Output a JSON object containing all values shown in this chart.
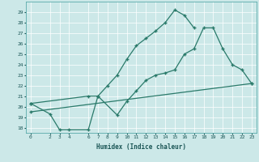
{
  "xlabel": "Humidex (Indice chaleur)",
  "bg_color": "#cce8e8",
  "line_color": "#2a7a6a",
  "ylim": [
    17.5,
    30.0
  ],
  "xlim": [
    -0.5,
    23.5
  ],
  "yticks": [
    18,
    19,
    20,
    21,
    22,
    23,
    24,
    25,
    26,
    27,
    28,
    29
  ],
  "xticks": [
    0,
    2,
    3,
    4,
    6,
    7,
    8,
    9,
    10,
    11,
    12,
    13,
    14,
    15,
    16,
    17,
    18,
    19,
    20,
    21,
    22,
    23
  ],
  "line1_x": [
    0,
    2,
    3,
    4,
    6,
    7,
    8,
    9,
    10,
    11,
    12,
    13,
    14,
    15,
    16,
    17
  ],
  "line1_y": [
    20.3,
    19.3,
    17.8,
    17.8,
    17.8,
    21.0,
    22.0,
    23.0,
    24.5,
    25.8,
    26.5,
    27.2,
    28.0,
    29.2,
    28.7,
    27.5
  ],
  "line2_x": [
    0,
    6,
    7,
    9,
    10,
    11,
    12,
    13,
    14,
    15,
    16,
    17,
    18,
    19,
    20,
    21,
    22,
    23
  ],
  "line2_y": [
    20.3,
    21.0,
    21.0,
    19.2,
    20.5,
    21.5,
    22.5,
    23.0,
    23.2,
    23.5,
    25.0,
    25.5,
    27.5,
    27.5,
    25.5,
    24.0,
    23.5,
    22.2
  ],
  "line3_x": [
    0,
    23
  ],
  "line3_y": [
    19.5,
    22.2
  ]
}
